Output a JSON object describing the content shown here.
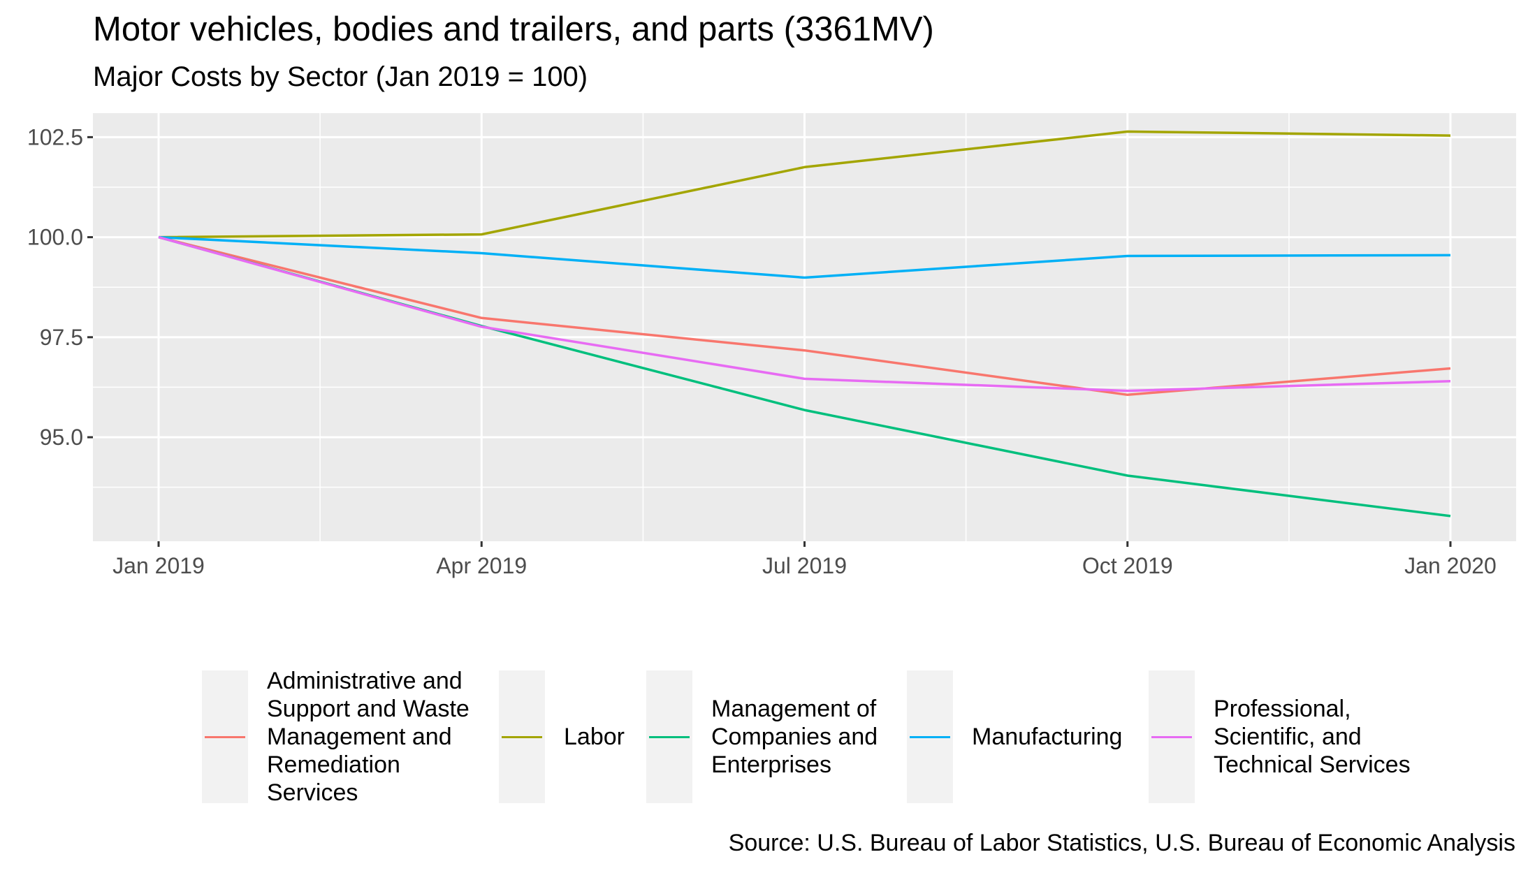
{
  "header": {
    "title": "Motor vehicles, bodies and trailers, and parts (3361MV)",
    "subtitle": "Major Costs by Sector (Jan 2019 = 100)"
  },
  "footer": {
    "source": "Source: U.S. Bureau of Labor Statistics, U.S. Bureau of Economic Analysis"
  },
  "chart_data": {
    "type": "line",
    "title": "Motor vehicles, bodies and trailers, and parts (3361MV)",
    "subtitle": "Major Costs by Sector (Jan 2019 = 100)",
    "x": [
      "2019-01",
      "2019-04",
      "2019-07",
      "2019-10",
      "2020-01"
    ],
    "x_tick_labels": [
      "Jan 2019",
      "Apr 2019",
      "Jul 2019",
      "Oct 2019",
      "Jan 2020"
    ],
    "ylim": [
      92.4,
      103.1
    ],
    "y_ticks": [
      95.0,
      97.5,
      100.0,
      102.5
    ],
    "y_tick_labels": [
      "95.0",
      "97.5",
      "100.0",
      "102.5"
    ],
    "grid": true,
    "legend_position": "bottom",
    "series": [
      {
        "name": "Administrative and Support and Waste Management and Remediation Services",
        "label_lines": [
          "Administrative and",
          "Support and Waste",
          "Management and",
          "Remediation",
          "Services"
        ],
        "color": "#F8766D",
        "values": [
          100.0,
          97.98,
          97.17,
          96.06,
          96.72
        ]
      },
      {
        "name": "Labor",
        "label_lines": [
          "Labor"
        ],
        "color": "#A3A500",
        "values": [
          100.0,
          100.07,
          101.75,
          102.64,
          102.54
        ]
      },
      {
        "name": "Management of Companies and Enterprises",
        "label_lines": [
          "Management of",
          "Companies and",
          "Enterprises"
        ],
        "color": "#00BF7D",
        "values": [
          100.0,
          97.78,
          95.68,
          94.04,
          93.03
        ]
      },
      {
        "name": "Manufacturing",
        "label_lines": [
          "Manufacturing"
        ],
        "color": "#00B0F6",
        "values": [
          100.0,
          99.6,
          98.99,
          99.53,
          99.55
        ]
      },
      {
        "name": "Professional, Scientific, and Technical Services",
        "label_lines": [
          "Professional,",
          "Scientific, and",
          "Technical Services"
        ],
        "color": "#E76BF3",
        "values": [
          100.0,
          97.76,
          96.46,
          96.16,
          96.4
        ]
      }
    ]
  }
}
